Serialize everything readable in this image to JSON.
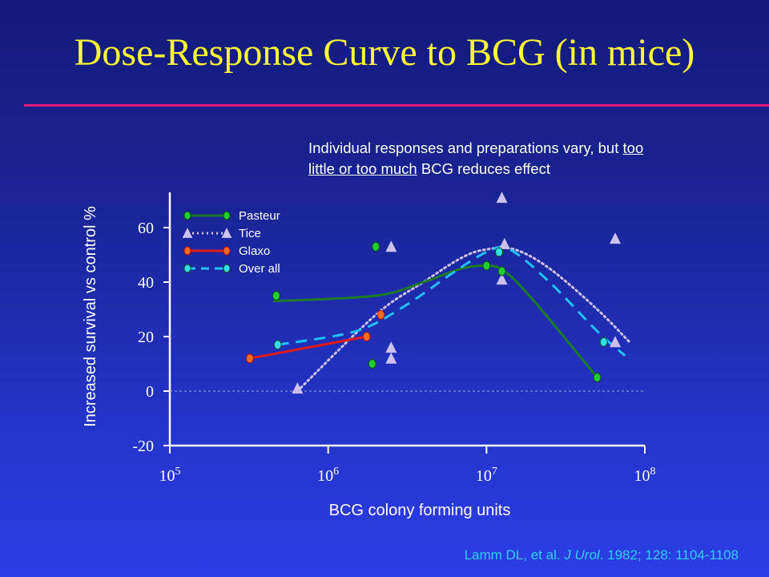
{
  "slide": {
    "title": "Dose-Response Curve to BCG (in mice)",
    "note": {
      "before": "Individual responses and preparations vary, but ",
      "underlined": "too little or too much",
      "after": " BCG reduces effect"
    },
    "citation": {
      "authors": "Lamm DL, et al. ",
      "journal": "J Urol",
      "details": ". 1982; 128: 1104-1108"
    }
  },
  "colors": {
    "title": "#ffff33",
    "rule": "#e0187a",
    "pasteur": "#1e7a26",
    "pasteur_marker": "#22cc33",
    "tice": "#ccc0ee",
    "glaxo": "#e01a1a",
    "glaxo_marker": "#ff6a22",
    "overall": "#22c0ff",
    "overall_marker": "#33ddff",
    "axis": "#ffffff"
  },
  "chart_data": {
    "type": "line",
    "xlabel": "BCG colony forming units",
    "ylabel": "Increased survival vs control %",
    "x_scale": "log",
    "xlim": [
      100000,
      100000000
    ],
    "ylim": [
      -20,
      70
    ],
    "x_ticks": [
      {
        "base": "10",
        "exp": "5",
        "value": 100000
      },
      {
        "base": "10",
        "exp": "6",
        "value": 1000000
      },
      {
        "base": "10",
        "exp": "7",
        "value": 10000000
      },
      {
        "base": "10",
        "exp": "8",
        "value": 100000000
      }
    ],
    "y_ticks": [
      -20,
      0,
      20,
      40,
      60
    ],
    "reference_line_y": 0,
    "legend": {
      "position": "top-left"
    },
    "series": [
      {
        "name": "Pasteur",
        "style": "solid",
        "marker": "circle",
        "points": [
          [
            470000,
            35
          ],
          [
            2000000,
            53
          ],
          [
            1900000,
            10
          ],
          [
            10000000,
            46
          ],
          [
            12500000,
            44
          ],
          [
            50000000,
            5
          ]
        ],
        "curve": [
          [
            450000,
            33
          ],
          [
            2000000,
            35
          ],
          [
            4000000,
            40
          ],
          [
            7000000,
            45
          ],
          [
            10000000,
            46
          ],
          [
            13000000,
            44
          ],
          [
            20000000,
            33
          ],
          [
            50000000,
            5
          ]
        ]
      },
      {
        "name": "Tice",
        "style": "dotted",
        "marker": "triangle",
        "points": [
          [
            640000,
            1
          ],
          [
            2500000,
            53
          ],
          [
            2500000,
            16
          ],
          [
            2500000,
            12
          ],
          [
            12500000,
            71
          ],
          [
            13000000,
            54
          ],
          [
            12500000,
            41
          ],
          [
            65000000,
            56
          ],
          [
            65000000,
            18
          ]
        ],
        "curve": [
          [
            640000,
            0
          ],
          [
            2000000,
            28
          ],
          [
            4000000,
            40
          ],
          [
            7000000,
            49
          ],
          [
            10000000,
            52
          ],
          [
            15000000,
            52
          ],
          [
            25000000,
            45
          ],
          [
            50000000,
            30
          ],
          [
            80000000,
            18
          ]
        ]
      },
      {
        "name": "Glaxo",
        "style": "solid",
        "marker": "circle",
        "points": [
          [
            320000,
            12
          ],
          [
            1750000,
            20
          ],
          [
            2150000,
            28
          ]
        ],
        "curve": [
          [
            320000,
            12
          ],
          [
            1750000,
            20
          ]
        ]
      },
      {
        "name": "Over all",
        "style": "dashed",
        "marker": "circle",
        "points": [
          [
            480000,
            17
          ],
          [
            12000000,
            51
          ],
          [
            55000000,
            18
          ]
        ],
        "curve": [
          [
            480000,
            17
          ],
          [
            1500000,
            22
          ],
          [
            3000000,
            31
          ],
          [
            6000000,
            43
          ],
          [
            10000000,
            51
          ],
          [
            14000000,
            52
          ],
          [
            25000000,
            40
          ],
          [
            50000000,
            22
          ],
          [
            75000000,
            13
          ]
        ]
      }
    ]
  }
}
